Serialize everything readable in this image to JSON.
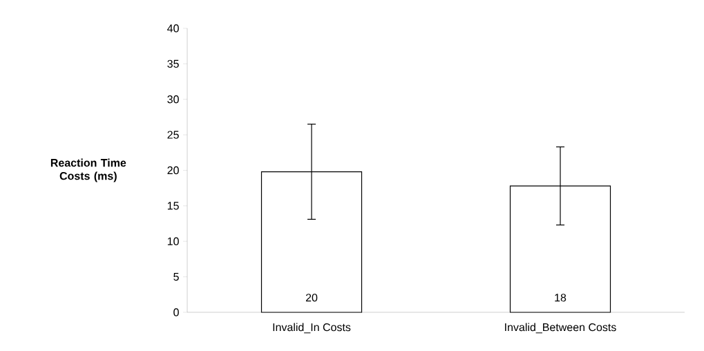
{
  "chart_data": {
    "type": "bar",
    "ylabel": "Reaction Time Costs (ms)",
    "categories": [
      "Invalid_In Costs",
      "Invalid_Between Costs"
    ],
    "values": [
      19.8,
      17.8
    ],
    "value_labels": [
      "20",
      "18"
    ],
    "errors": [
      [
        13.1,
        26.5
      ],
      [
        12.3,
        23.3
      ]
    ],
    "color": "#ffffff",
    "ylim": [
      0,
      40
    ],
    "yticks": [
      0,
      5,
      10,
      15,
      20,
      25,
      30,
      35,
      40
    ],
    "grid": false
  }
}
